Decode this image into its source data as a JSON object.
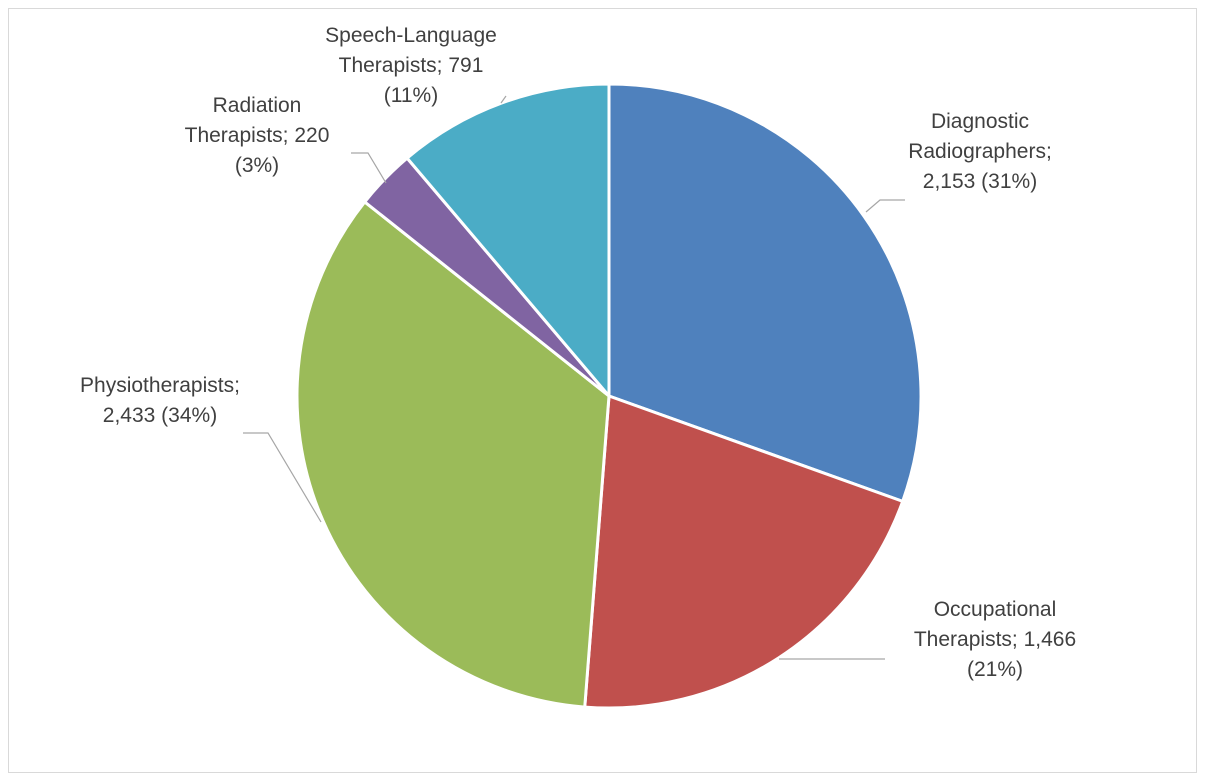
{
  "chart_data": {
    "type": "pie",
    "title": "",
    "slices": [
      {
        "name": "Diagnostic Radiographers",
        "value": 2153,
        "percent": "31%",
        "color": "#4f81bd",
        "label_lines": [
          "Diagnostic",
          "Radiographers;",
          "2,153 (31%)"
        ]
      },
      {
        "name": "Occupational Therapists",
        "value": 1466,
        "percent": "21%",
        "color": "#c0504d",
        "label_lines": [
          "Occupational",
          "Therapists; 1,466",
          "(21%)"
        ]
      },
      {
        "name": "Physiotherapists",
        "value": 2433,
        "percent": "34%",
        "color": "#9bbb59",
        "label_lines": [
          "Physiotherapists;",
          "2,433 (34%)"
        ]
      },
      {
        "name": "Radiation Therapists",
        "value": 220,
        "percent": "3%",
        "color": "#8064a2",
        "label_lines": [
          "Radiation",
          "Therapists; 220",
          "(3%)"
        ]
      },
      {
        "name": "Speech-Language Therapists",
        "value": 791,
        "percent": "11%",
        "color": "#4bacc6",
        "label_lines": [
          "Speech-Language",
          "Therapists; 791",
          "(11%)"
        ]
      }
    ],
    "legend": "none",
    "data_labels": "outside with leader lines"
  }
}
